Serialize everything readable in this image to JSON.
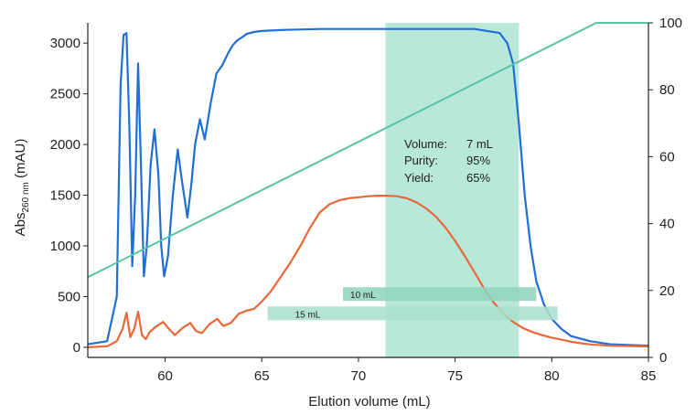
{
  "chart_data": {
    "type": "line",
    "xlabel": "Elution volume (mL)",
    "ylabel_left": {
      "main": "Abs",
      "subscript": "260 nm",
      "suffix": " (mAU)"
    },
    "xlim": [
      56,
      85
    ],
    "ylim_left": [
      -100,
      3200
    ],
    "ylim_right": [
      0,
      100
    ],
    "x_ticks": [
      60,
      65,
      70,
      75,
      80,
      85
    ],
    "y_left_ticks": [
      0,
      500,
      1000,
      1500,
      2000,
      2500,
      3000
    ],
    "y_right_ticks": [
      0,
      20,
      40,
      60,
      80,
      100
    ],
    "grid": false,
    "colors": {
      "abs_main": "#1f6fd6",
      "abs_sample": "#e8683a",
      "gradient": "#5cc4a4",
      "fraction_window": "#b7e8d9",
      "bar_10ml": "#8fd4bd",
      "bar_15ml": "#a8dfcd"
    },
    "fraction_window": {
      "x_start": 71.4,
      "x_end": 78.3
    },
    "annotation": {
      "rows": [
        {
          "label": "Volume:",
          "value": "7 mL"
        },
        {
          "label": "Purity:",
          "value": "95%"
        },
        {
          "label": "Yield:",
          "value": "65%"
        }
      ]
    },
    "volume_bars": [
      {
        "label": "10 mL",
        "x_start": 69.2,
        "x_end": 79.2,
        "y": 520
      },
      {
        "label": "15 mL",
        "x_start": 65.3,
        "x_end": 80.3,
        "y": 330
      }
    ],
    "series": [
      {
        "axis": "left",
        "color": "#1f6fd6",
        "x": [
          56,
          57,
          57.5,
          57.7,
          57.85,
          58.0,
          58.15,
          58.3,
          58.45,
          58.6,
          58.75,
          58.9,
          59.05,
          59.25,
          59.45,
          59.65,
          59.8,
          59.95,
          60.15,
          60.4,
          60.65,
          60.9,
          61.15,
          61.35,
          61.55,
          61.8,
          62.05,
          62.35,
          62.65,
          62.95,
          63.25,
          63.5,
          63.75,
          64.0,
          64.2,
          64.6,
          65.0,
          66,
          68,
          70,
          72,
          74,
          76,
          77.3,
          77.7,
          78.0,
          78.3,
          78.6,
          78.9,
          79.2,
          79.6,
          80.0,
          80.5,
          81,
          82,
          83,
          85
        ],
        "y": [
          30,
          60,
          500,
          2600,
          3080,
          3100,
          2200,
          800,
          1500,
          2800,
          1800,
          700,
          1000,
          1800,
          2150,
          1700,
          1000,
          700,
          900,
          1500,
          1950,
          1600,
          1280,
          1600,
          2000,
          2250,
          2050,
          2400,
          2700,
          2780,
          2900,
          2980,
          3030,
          3060,
          3090,
          3110,
          3120,
          3130,
          3140,
          3140,
          3140,
          3140,
          3140,
          3100,
          3000,
          2800,
          2200,
          1500,
          1000,
          650,
          420,
          280,
          180,
          110,
          60,
          30,
          15
        ]
      },
      {
        "axis": "left",
        "color": "#e8683a",
        "x": [
          56,
          57,
          57.5,
          57.8,
          58.0,
          58.2,
          58.4,
          58.6,
          58.8,
          59.0,
          59.2,
          59.5,
          59.9,
          60.2,
          60.5,
          60.9,
          61.3,
          61.6,
          61.9,
          62.3,
          62.7,
          63.0,
          63.4,
          63.8,
          64.2,
          64.6,
          65.0,
          65.5,
          66.0,
          66.5,
          67.0,
          67.5,
          68.0,
          68.5,
          69.0,
          69.5,
          70.0,
          70.5,
          71.0,
          71.5,
          72.0,
          72.5,
          73.0,
          73.5,
          74.0,
          74.5,
          75.0,
          75.5,
          76.0,
          76.5,
          77.0,
          77.5,
          78.0,
          78.5,
          79.0,
          79.5,
          80.0,
          80.5,
          81.0,
          81.5,
          82,
          83,
          85
        ],
        "y": [
          0,
          10,
          60,
          180,
          340,
          100,
          180,
          350,
          120,
          80,
          150,
          200,
          250,
          180,
          120,
          190,
          240,
          160,
          140,
          230,
          280,
          210,
          240,
          330,
          360,
          380,
          450,
          560,
          700,
          840,
          1000,
          1180,
          1330,
          1410,
          1450,
          1470,
          1480,
          1490,
          1495,
          1495,
          1490,
          1470,
          1430,
          1370,
          1290,
          1180,
          1050,
          900,
          740,
          580,
          440,
          330,
          250,
          190,
          150,
          120,
          95,
          75,
          55,
          40,
          28,
          15,
          8
        ]
      },
      {
        "axis": "right",
        "color": "#5cc4a4",
        "x": [
          56,
          82.3,
          85
        ],
        "y": [
          24,
          100,
          100
        ]
      }
    ]
  }
}
